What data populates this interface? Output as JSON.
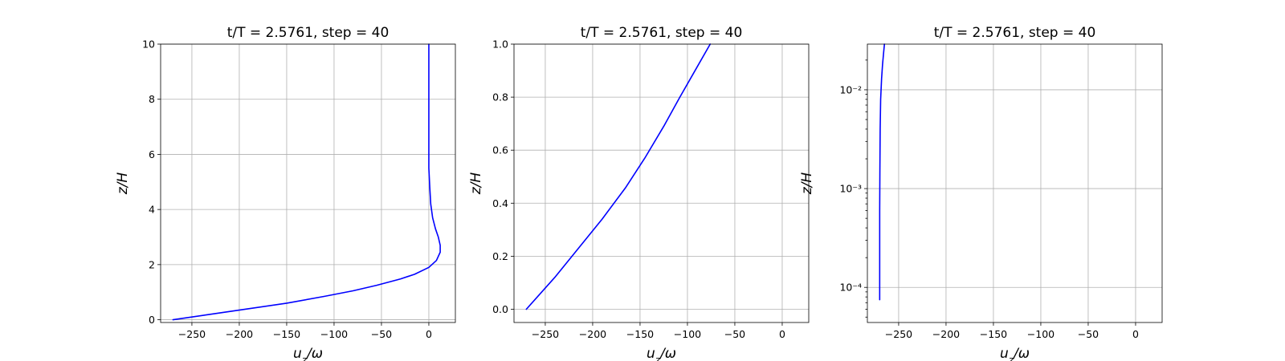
{
  "chart_data": [
    {
      "type": "line",
      "title": "t/T = 2.5761, step = 40",
      "xlabel": "u_z/ω",
      "ylabel": "z/H",
      "xlim": [
        -283,
        28
      ],
      "ylim": [
        -0.1,
        10
      ],
      "yscale": "linear",
      "grid": true,
      "xticks": [
        -250,
        -200,
        -150,
        -100,
        -50,
        0
      ],
      "yticks": [
        0,
        2,
        4,
        6,
        8,
        10
      ],
      "ytick_labels": [
        "0",
        "2",
        "4",
        "6",
        "8",
        "10"
      ],
      "line_color": "#0000ff",
      "series": [
        {
          "x": [
            -270,
            -230,
            -190,
            -150,
            -110,
            -80,
            -55,
            -30,
            -15,
            0,
            8,
            12,
            12,
            10,
            7,
            4,
            2,
            1,
            0,
            0,
            0
          ],
          "y": [
            0,
            0.2,
            0.4,
            0.6,
            0.85,
            1.05,
            1.25,
            1.48,
            1.65,
            1.9,
            2.15,
            2.45,
            2.7,
            3.0,
            3.3,
            3.7,
            4.2,
            4.8,
            5.5,
            7.0,
            10.0
          ]
        }
      ]
    },
    {
      "type": "line",
      "title": "t/T = 2.5761, step = 40",
      "xlabel": "u_z/ω",
      "ylabel": "z/H",
      "xlim": [
        -283,
        28
      ],
      "ylim": [
        -0.05,
        1.0
      ],
      "yscale": "linear",
      "grid": true,
      "xticks": [
        -250,
        -200,
        -150,
        -100,
        -50,
        0
      ],
      "yticks": [
        0,
        0.2,
        0.4,
        0.6,
        0.8,
        1.0
      ],
      "ytick_labels": [
        "0.0",
        "0.2",
        "0.4",
        "0.6",
        "0.8",
        "1.0"
      ],
      "line_color": "#0000ff",
      "series": [
        {
          "x": [
            -270,
            -240,
            -215,
            -190,
            -165,
            -145,
            -125,
            -108,
            -92,
            -76
          ],
          "y": [
            0,
            0.12,
            0.23,
            0.34,
            0.46,
            0.57,
            0.69,
            0.8,
            0.9,
            1.0
          ]
        }
      ]
    },
    {
      "type": "line",
      "title": "t/T = 2.5761, step = 40",
      "xlabel": "u_z/ω",
      "ylabel": "z/H",
      "xlim": [
        -283,
        28
      ],
      "ylim": [
        4.41e-05,
        0.029
      ],
      "yscale": "log",
      "grid": true,
      "xticks": [
        -250,
        -200,
        -150,
        -100,
        -50,
        0
      ],
      "yticks": [
        0.0001,
        0.001,
        0.01
      ],
      "ytick_labels": [
        "10⁻⁴",
        "10⁻³",
        "10⁻²"
      ],
      "line_color": "#0000ff",
      "series": [
        {
          "x": [
            -270,
            -270,
            -270,
            -269.8,
            -269.5,
            -269,
            -268,
            -267,
            -266,
            -265
          ],
          "y": [
            7.5e-05,
            0.0002,
            0.0006,
            0.0015,
            0.004,
            0.008,
            0.013,
            0.018,
            0.023,
            0.029
          ]
        }
      ]
    }
  ]
}
